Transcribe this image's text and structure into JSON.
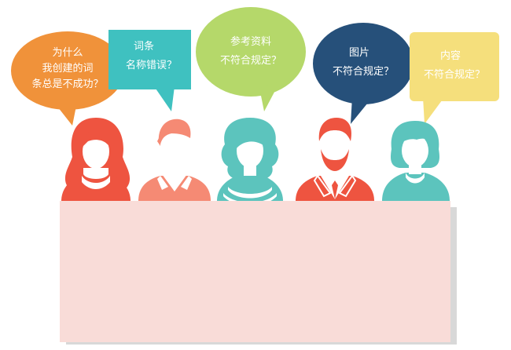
{
  "bubbles": [
    {
      "lines": [
        "为什么",
        "我创建的词",
        "条总是不成功？"
      ],
      "color": "#f0923a"
    },
    {
      "lines": [
        "词条",
        "名称错误？"
      ],
      "color": "#3fc1c0"
    },
    {
      "lines": [
        "参考资料",
        "不符合规定？"
      ],
      "color": "#b5d86a"
    },
    {
      "lines": [
        "图片",
        "不符合规定？"
      ],
      "color": "#26507a"
    },
    {
      "lines": [
        "内容",
        "不符合规定？"
      ],
      "color": "#f5df7c"
    }
  ],
  "people": [
    {
      "icon": "woman-long-hair-icon",
      "color": "#ee5440"
    },
    {
      "icon": "man-quiff-icon",
      "color": "#f58a74"
    },
    {
      "icon": "woman-curly-hair-icon",
      "color": "#5cc4bd"
    },
    {
      "icon": "man-beard-suit-icon",
      "color": "#ee5440"
    },
    {
      "icon": "woman-bob-hair-icon",
      "color": "#5cc4bd"
    }
  ],
  "board": {
    "color": "#f9dcd8",
    "shadow": "#d8d8d8"
  }
}
